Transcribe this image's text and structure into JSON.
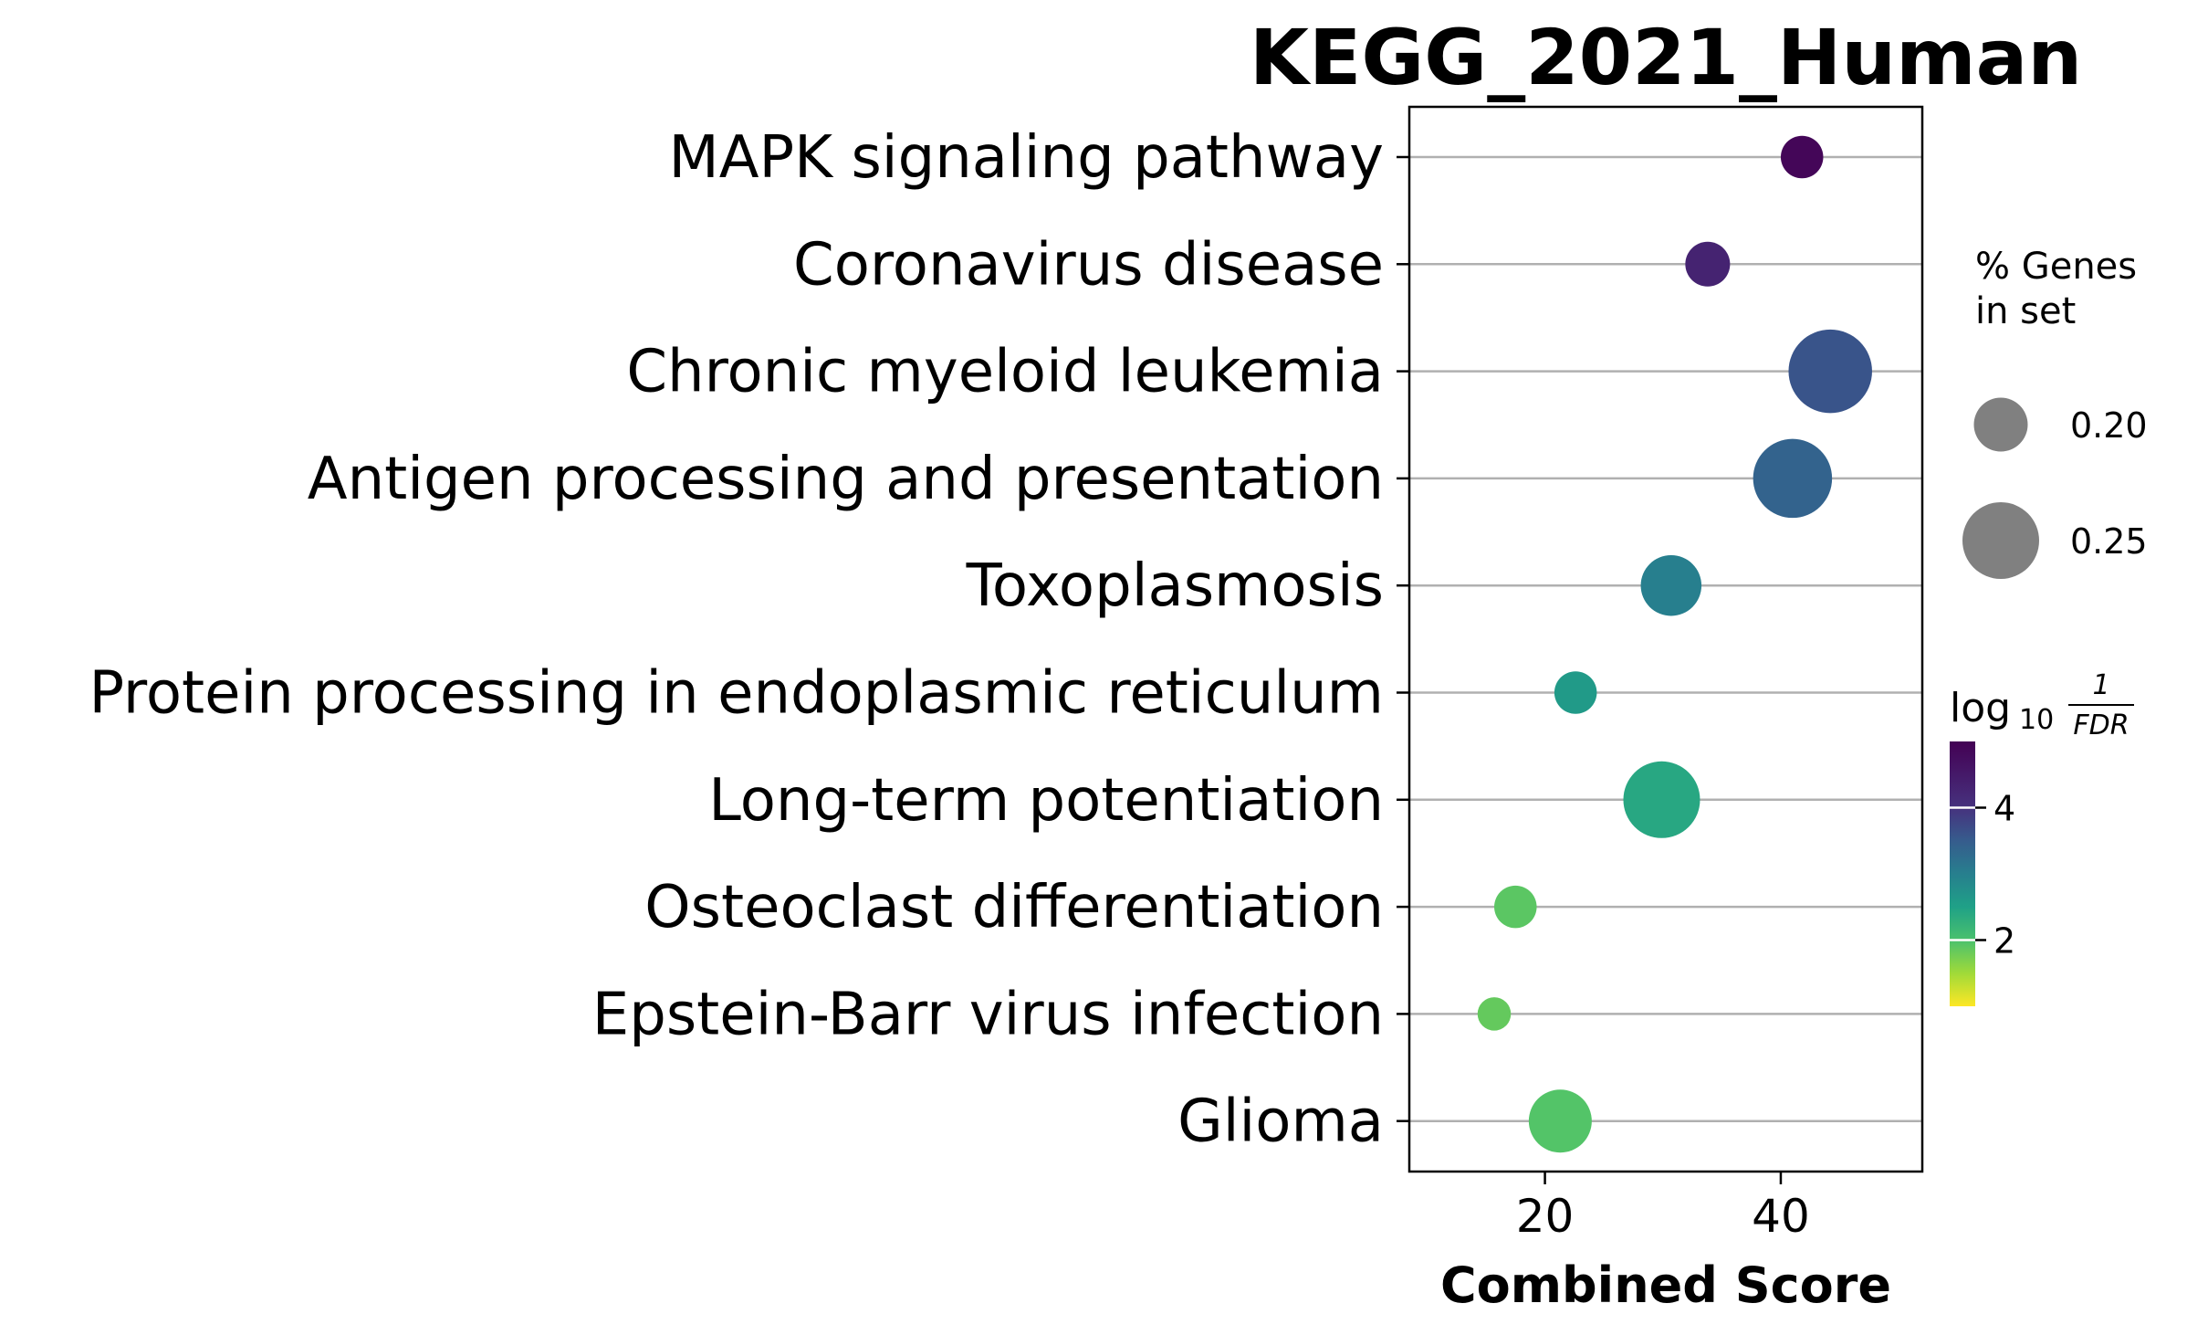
{
  "chart_data": {
    "type": "scatter",
    "title": "KEGG_2021_Human",
    "xlabel": "Combined Score",
    "ylabel": "",
    "xlim": [
      8.5,
      52
    ],
    "xticks": [
      20,
      40
    ],
    "grid": "horizontal",
    "categories": [
      "MAPK signaling pathway",
      "Coronavirus disease",
      "Chronic myeloid leukemia",
      "Antigen processing and presentation",
      "Toxoplasmosis",
      "Protein processing in endoplasmic reticulum",
      "Long-term potentiation",
      "Osteoclast differentiation",
      "Epstein-Barr virus infection",
      "Glioma"
    ],
    "points": [
      {
        "term": "MAPK signaling pathway",
        "combined_score": 41.8,
        "pct_genes": 0.175,
        "log10_inv_fdr": 4.9
      },
      {
        "term": "Coronavirus disease",
        "combined_score": 33.8,
        "pct_genes": 0.18,
        "log10_inv_fdr": 4.3
      },
      {
        "term": "Chronic myeloid leukemia",
        "combined_score": 44.2,
        "pct_genes": 0.265,
        "log10_inv_fdr": 3.6
      },
      {
        "term": "Antigen processing and presentation",
        "combined_score": 41.0,
        "pct_genes": 0.255,
        "log10_inv_fdr": 3.4
      },
      {
        "term": "Toxoplasmosis",
        "combined_score": 30.7,
        "pct_genes": 0.215,
        "log10_inv_fdr": 3.0
      },
      {
        "term": "Protein processing in endoplasmic reticulum",
        "combined_score": 22.6,
        "pct_genes": 0.175,
        "log10_inv_fdr": 2.6
      },
      {
        "term": "Long-term potentiation",
        "combined_score": 29.9,
        "pct_genes": 0.25,
        "log10_inv_fdr": 2.4
      },
      {
        "term": "Osteoclast differentiation",
        "combined_score": 17.5,
        "pct_genes": 0.175,
        "log10_inv_fdr": 1.9
      },
      {
        "term": "Epstein-Barr virus infection",
        "combined_score": 15.7,
        "pct_genes": 0.155,
        "log10_inv_fdr": 1.85
      },
      {
        "term": "Glioma",
        "combined_score": 21.3,
        "pct_genes": 0.22,
        "log10_inv_fdr": 1.95
      }
    ],
    "size_legend": {
      "title_line1": "% Genes",
      "title_line2": "in set",
      "entries": [
        {
          "label": "0.20",
          "value": 0.2
        },
        {
          "label": "0.25",
          "value": 0.25
        }
      ],
      "color": "#808080"
    },
    "colorbar": {
      "title_main": "log",
      "title_sub": "10",
      "frac_num": "1",
      "frac_den": "FDR",
      "colormap": "viridis_r",
      "range": [
        1.0,
        5.0
      ],
      "ticks": [
        {
          "label": "2",
          "value": 2
        },
        {
          "label": "4",
          "value": 4
        }
      ]
    }
  }
}
